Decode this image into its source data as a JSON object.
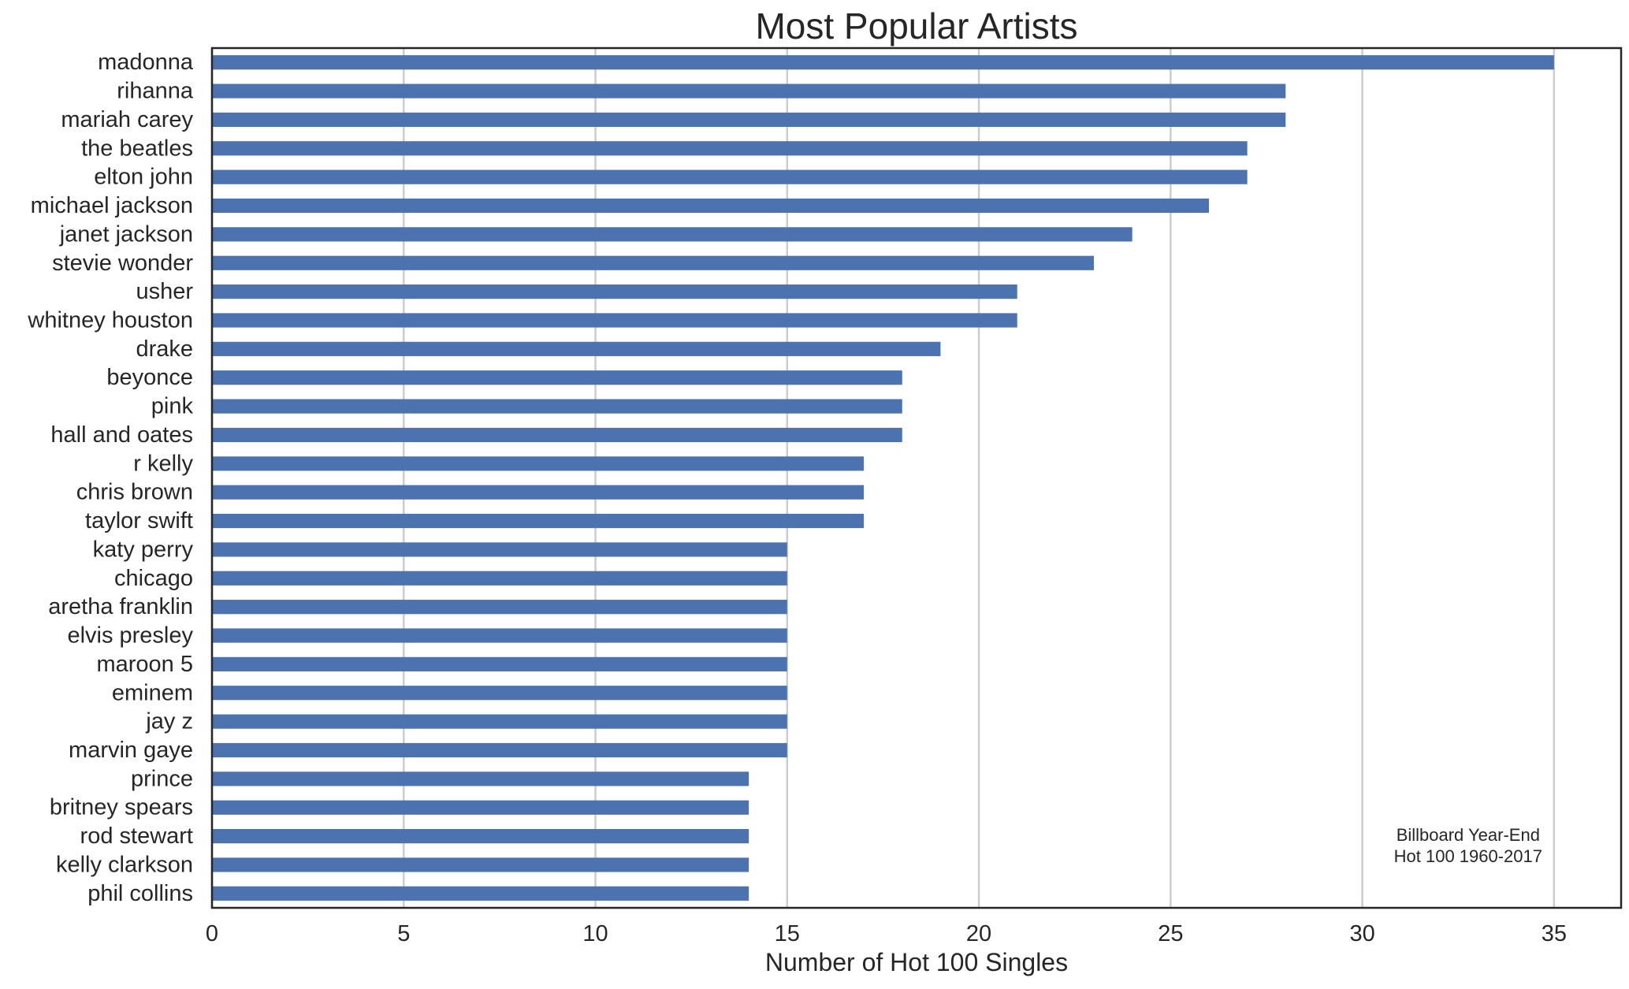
{
  "chart_data": {
    "type": "bar",
    "orientation": "horizontal",
    "title": "Most Popular Artists",
    "xlabel": "Number of Hot 100 Singles",
    "ylabel": "",
    "xlim": [
      0,
      36.75
    ],
    "xticks": [
      0,
      5,
      10,
      15,
      20,
      25,
      30,
      35
    ],
    "grid": "vertical",
    "bar_color": "#4c72b0",
    "annotation": [
      "Billboard Year-End",
      "Hot 100 1960-2017"
    ],
    "categories": [
      "madonna",
      "rihanna",
      "mariah carey",
      "the beatles",
      "elton john",
      "michael jackson",
      "janet jackson",
      "stevie wonder",
      "usher",
      "whitney houston",
      "drake",
      "beyonce",
      "pink",
      "hall and oates",
      "r kelly",
      "chris brown",
      "taylor swift",
      "katy perry",
      "chicago",
      "aretha franklin",
      "elvis presley",
      "maroon 5",
      "eminem",
      "jay z",
      "marvin gaye",
      "prince",
      "britney spears",
      "rod stewart",
      "kelly clarkson",
      "phil collins"
    ],
    "values": [
      35,
      28,
      28,
      27,
      27,
      26,
      24,
      23,
      21,
      21,
      19,
      18,
      18,
      18,
      17,
      17,
      17,
      15,
      15,
      15,
      15,
      15,
      15,
      15,
      15,
      14,
      14,
      14,
      14,
      14
    ]
  }
}
